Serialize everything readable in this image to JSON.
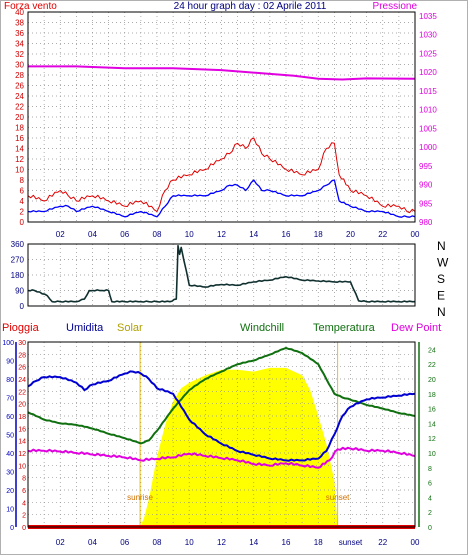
{
  "colors": {
    "wind": "#e00000",
    "wind_avg": "#0000ff",
    "pressure": "#e000e0",
    "direction": "#103030",
    "rain": "#e00000",
    "humidity": "#0000d0",
    "solar": "#ffff00",
    "windchill": "#107010",
    "temperature": "#107010",
    "dewpoint": "#e000e0",
    "grid": "#909090",
    "frame": "#000000",
    "sun_line": "#f0c000",
    "sun_text": "#d07000"
  },
  "chart_data": [
    {
      "id": "wind-pressure",
      "type": "line",
      "title": "24 hour graph day : 02 Aprile 2011",
      "left_label": "Forza vento",
      "right_label": "Pressione",
      "x_ticks": [
        "02",
        "04",
        "06",
        "08",
        "10",
        "12",
        "14",
        "16",
        "18",
        "20",
        "22",
        "00"
      ],
      "y_left": {
        "ticks": [
          0,
          2,
          4,
          6,
          8,
          10,
          12,
          14,
          16,
          18,
          20,
          22,
          24,
          26,
          28,
          30,
          32,
          34,
          36,
          38,
          40
        ],
        "lim": [
          0,
          40
        ]
      },
      "y_right": {
        "ticks": [
          980,
          985,
          990,
          995,
          1000,
          1005,
          1010,
          1015,
          1020,
          1025,
          1030,
          1035
        ],
        "lim": [
          980,
          1036
        ]
      },
      "series": [
        {
          "key": "gust",
          "axis": "left",
          "x": [
            0,
            1,
            2,
            2.5,
            3,
            4,
            5,
            6,
            7,
            8,
            8.5,
            9,
            10,
            11,
            12,
            12.5,
            13,
            13.5,
            14,
            14.5,
            15,
            16,
            17,
            18,
            18.5,
            19,
            19.3,
            20,
            21,
            22,
            23,
            23.5,
            24
          ],
          "y": [
            5,
            4,
            6,
            5,
            4,
            5,
            4,
            3,
            4,
            2,
            6,
            8,
            9,
            10,
            12,
            13,
            15,
            14,
            16,
            13,
            12,
            10,
            9,
            10,
            14,
            15,
            9,
            6,
            5,
            3,
            3,
            2,
            2
          ]
        },
        {
          "key": "wind_avg",
          "axis": "left",
          "x": [
            0,
            1,
            2,
            2.5,
            3,
            4,
            5,
            6,
            7,
            8,
            8.5,
            9,
            10,
            11,
            12,
            12.5,
            13,
            13.5,
            14,
            14.5,
            15,
            16,
            17,
            18,
            18.5,
            19,
            19.3,
            20,
            21,
            22,
            23,
            23.5,
            24
          ],
          "y": [
            2,
            2,
            3,
            3,
            2,
            3,
            2,
            1,
            2,
            1,
            3,
            5,
            5,
            5,
            6,
            7,
            7,
            6,
            8,
            6,
            6,
            5,
            5,
            6,
            7,
            8,
            4,
            3,
            2,
            2,
            1,
            1,
            1
          ]
        },
        {
          "key": "pressure",
          "axis": "right",
          "x": [
            0,
            3,
            6,
            9,
            12,
            15,
            16.5,
            18,
            19.5,
            21,
            24
          ],
          "y": [
            1021.5,
            1021.5,
            1021,
            1021,
            1020.5,
            1019.5,
            1019,
            1018.2,
            1018,
            1018.3,
            1018.2
          ]
        }
      ]
    },
    {
      "id": "wind-direction",
      "type": "line",
      "y_left": {
        "ticks": [
          0,
          90,
          180,
          270,
          360
        ],
        "lim": [
          0,
          360
        ]
      },
      "right_labels": [
        "N",
        "W",
        "S",
        "E",
        "N"
      ],
      "series": [
        {
          "key": "direction",
          "x": [
            0,
            0.4,
            1.2,
            1.5,
            2,
            3,
            3.5,
            3.8,
            4,
            4.6,
            5,
            5.2,
            6,
            7,
            7.5,
            8,
            8.8,
            9.2,
            9.3,
            9.4,
            9.5,
            10,
            11,
            12,
            13,
            14,
            15,
            16,
            17,
            18,
            19,
            20,
            20.5,
            21,
            22,
            23,
            24
          ],
          "y": [
            90,
            90,
            60,
            25,
            25,
            25,
            40,
            90,
            90,
            90,
            90,
            25,
            25,
            25,
            25,
            25,
            25,
            40,
            350,
            300,
            340,
            120,
            110,
            125,
            120,
            140,
            150,
            170,
            150,
            145,
            140,
            140,
            30,
            25,
            25,
            25,
            25
          ]
        }
      ]
    },
    {
      "id": "rain-humidity-temp",
      "type": "line",
      "labels": [
        "Pioggia",
        "Umidita",
        "Solar",
        "Windchill",
        "Temperatura",
        "Dew Point"
      ],
      "x_ticks": [
        "02",
        "04",
        "06",
        "08",
        "10",
        "12",
        "14",
        "16",
        "18",
        "sunset",
        "22",
        "00"
      ],
      "humidity_axis": {
        "ticks": [
          0,
          10,
          20,
          30,
          40,
          50,
          60,
          70,
          80,
          90,
          100
        ],
        "lim": [
          0,
          100
        ]
      },
      "rain_axis": {
        "ticks": [
          0,
          2,
          4,
          6,
          8,
          10,
          12,
          14,
          16,
          18,
          20,
          22,
          24,
          26,
          28,
          30
        ],
        "lim": [
          0,
          30
        ]
      },
      "temperature_axis": {
        "ticks": [
          0,
          2,
          4,
          6,
          8,
          10,
          12,
          14,
          16,
          18,
          20,
          22,
          24
        ],
        "lim": [
          0,
          25
        ]
      },
      "sunrise": {
        "x": 6.95,
        "label": "sunrise"
      },
      "sunset": {
        "x": 19.2,
        "label": "sunset"
      },
      "series": [
        {
          "key": "solar",
          "axis": "humidity",
          "x": [
            6.95,
            7.2,
            7.5,
            8,
            8.5,
            9,
            9.5,
            10,
            10.5,
            11,
            12,
            13,
            14,
            15,
            16,
            17,
            17.5,
            18,
            18.5,
            19,
            19.2
          ],
          "y": [
            0,
            5,
            15,
            38,
            55,
            68,
            75,
            78,
            80,
            82,
            85,
            85,
            84,
            86,
            86,
            82,
            74,
            60,
            45,
            25,
            0
          ]
        },
        {
          "key": "humidity",
          "axis": "humidity",
          "x": [
            0,
            0.5,
            1,
            2,
            3,
            3.5,
            4,
            5,
            6,
            6.5,
            7,
            7.5,
            8,
            9,
            10,
            11,
            12,
            13,
            14,
            15,
            16,
            17,
            18,
            18.5,
            19,
            19.5,
            20,
            21,
            22,
            23,
            24
          ],
          "y": [
            76,
            79,
            81,
            81,
            78,
            74,
            77,
            79,
            83,
            84,
            83,
            80,
            75,
            72,
            58,
            50,
            45,
            41,
            39,
            37,
            36,
            36,
            37,
            41,
            50,
            60,
            65,
            69,
            70,
            71,
            72
          ]
        },
        {
          "key": "temperature",
          "axis": "temperature",
          "x": [
            0,
            1,
            2,
            3,
            4,
            5,
            6,
            7,
            7.5,
            8,
            9,
            10,
            11,
            12,
            13,
            14,
            15,
            16,
            17,
            18,
            18.5,
            19,
            19.5,
            20,
            21,
            22,
            23,
            24
          ],
          "y": [
            15.5,
            14.5,
            14,
            13.8,
            13.3,
            12.6,
            12,
            11.3,
            11.7,
            13,
            16,
            18.5,
            20,
            21,
            22,
            22.5,
            23.3,
            24.2,
            23.5,
            22,
            20,
            18,
            17.5,
            17.2,
            16.5,
            16,
            15.4,
            15
          ]
        },
        {
          "key": "dewpoint",
          "axis": "temperature",
          "x": [
            0,
            1,
            2,
            3,
            4,
            5,
            6,
            7,
            8,
            9,
            10,
            11,
            12,
            13,
            14,
            15,
            16,
            17,
            18,
            18.7,
            19.2,
            20,
            21,
            22,
            23,
            24
          ],
          "y": [
            10.3,
            10.3,
            10.2,
            10,
            9.8,
            9.6,
            9.4,
            9,
            9.2,
            9.4,
            9.9,
            9.6,
            9.3,
            9,
            8.5,
            8.3,
            8.6,
            8.3,
            8,
            9,
            10.5,
            10.6,
            10.3,
            10.3,
            10,
            9.6
          ]
        },
        {
          "key": "rain",
          "axis": "rain",
          "x": [
            0,
            24
          ],
          "y": [
            0,
            0
          ]
        }
      ]
    }
  ]
}
